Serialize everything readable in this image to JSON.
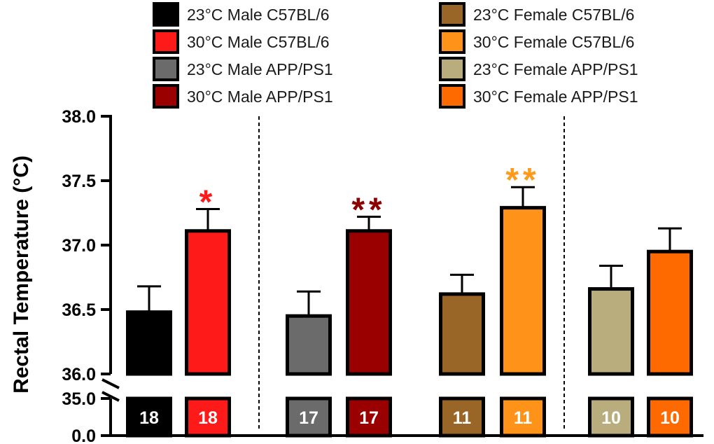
{
  "chart_data": {
    "type": "bar",
    "title": "",
    "xlabel": "",
    "ylabel": "Rectal Temperature (°C)",
    "ylim": [
      36.0,
      38.0
    ],
    "yticks": [
      "38.0",
      "37.5",
      "37.0",
      "36.5",
      "36.0"
    ],
    "lower_axis_ticks": [
      "35.0",
      "0.0"
    ],
    "legend_position": "top",
    "categories": [
      "23°C Male C57BL/6",
      "30°C Male C57BL/6",
      "23°C Male APP/PS1",
      "30°C Male APP/PS1",
      "23°C Female C57BL/6",
      "30°C Female C57BL/6",
      "23°C Female APP/PS1",
      "30°C Female APP/PS1"
    ],
    "series": [
      {
        "name": "Rectal Temperature",
        "values": [
          36.48,
          37.11,
          36.45,
          37.11,
          36.62,
          37.29,
          36.66,
          36.95
        ],
        "errors": [
          0.2,
          0.17,
          0.19,
          0.11,
          0.15,
          0.16,
          0.18,
          0.18
        ]
      }
    ],
    "n_labels": [
      "18",
      "18",
      "17",
      "17",
      "11",
      "11",
      "10",
      "10"
    ],
    "significance": [
      {
        "bar": 1,
        "label": "*",
        "color": "#ff1a1a"
      },
      {
        "bar": 3,
        "label": "**",
        "color": "#8b0000"
      },
      {
        "bar": 5,
        "label": "**",
        "color": "#ff9a1a"
      }
    ],
    "colors": [
      "#000000",
      "#ff1a1a",
      "#6b6b6b",
      "#9b0000",
      "#9a6627",
      "#ff931a",
      "#b9ad7e",
      "#ff6a00"
    ],
    "legend": [
      {
        "label": "23°C Male C57BL/6",
        "color": "#000000"
      },
      {
        "label": "30°C Male C57BL/6",
        "color": "#ff1a1a"
      },
      {
        "label": "23°C Male APP/PS1",
        "color": "#6b6b6b"
      },
      {
        "label": "30°C Male APP/PS1",
        "color": "#9b0000"
      },
      {
        "label": "23°C Female C57BL/6",
        "color": "#9a6627"
      },
      {
        "label": "30°C Female C57BL/6",
        "color": "#ff931a"
      },
      {
        "label": "23°C Female APP/PS1",
        "color": "#b9ad7e"
      },
      {
        "label": "30°C Female APP/PS1",
        "color": "#ff6a00"
      }
    ]
  }
}
